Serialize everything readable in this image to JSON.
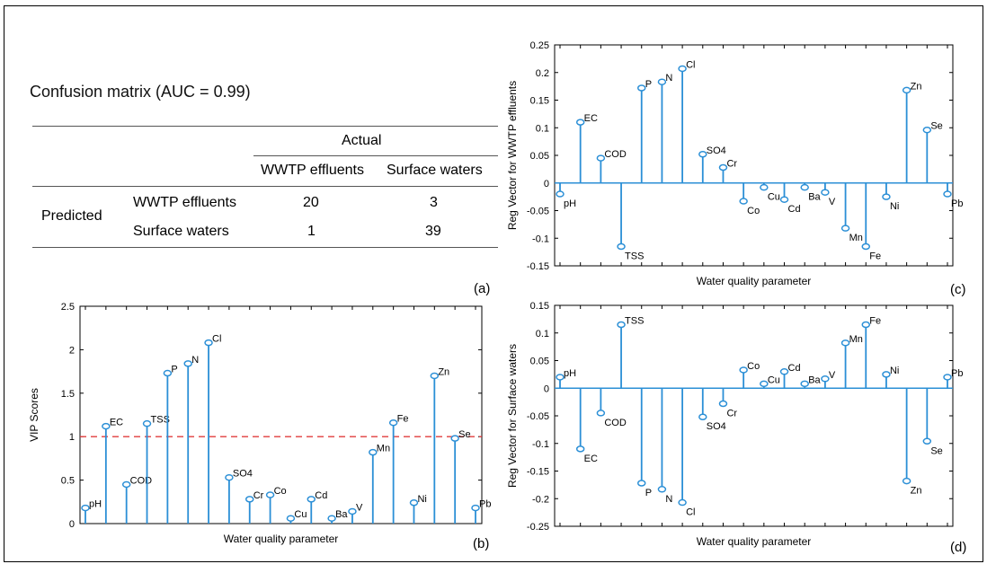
{
  "panel_a": {
    "title": "Confusion matrix (AUC = 0.99)",
    "actual_header": "Actual",
    "predicted_label": "Predicted",
    "columns": [
      "WWTP effluents",
      "Surface waters"
    ],
    "rows": [
      {
        "label": "WWTP effluents",
        "values": [
          "20",
          "3"
        ]
      },
      {
        "label": "Surface waters",
        "values": [
          "1",
          "39"
        ]
      }
    ],
    "panel_label": "(a)"
  },
  "colors": {
    "stem": "#2b8fd6",
    "threshold": "#e03c3c",
    "axis": "#000000"
  },
  "chart_data": [
    {
      "id": "b",
      "type": "stem",
      "panel_label": "(b)",
      "xlabel": "Water quality parameter",
      "ylabel": "VIP Scores",
      "ylim": [
        0,
        2.5
      ],
      "yticks": [
        0,
        0.5,
        1,
        1.5,
        2,
        2.5
      ],
      "ytick_labels": [
        "0",
        "0.5",
        "1",
        "1.5",
        "2",
        "2.5"
      ],
      "threshold": 1,
      "categories": [
        "pH",
        "EC",
        "COD",
        "TSS",
        "P",
        "N",
        "Cl",
        "SO4",
        "Cr",
        "Co",
        "Cu",
        "Cd",
        "Ba",
        "V",
        "Mn",
        "Fe",
        "Ni",
        "Zn",
        "Se",
        "Pb"
      ],
      "values": [
        0.18,
        1.12,
        0.45,
        1.15,
        1.73,
        1.84,
        2.08,
        0.53,
        0.28,
        0.33,
        0.06,
        0.28,
        0.06,
        0.14,
        0.82,
        1.16,
        0.24,
        1.7,
        0.98,
        0.18
      ]
    },
    {
      "id": "c",
      "type": "stem",
      "panel_label": "(c)",
      "xlabel": "Water quality parameter",
      "ylabel": "Reg Vector for WWTP effluents",
      "ylim": [
        -0.15,
        0.25
      ],
      "yticks": [
        -0.15,
        -0.1,
        -0.05,
        0,
        0.05,
        0.1,
        0.15,
        0.2,
        0.25
      ],
      "ytick_labels": [
        "-0.15",
        "-0.1",
        "-0.05",
        "0",
        "0.05",
        "0.1",
        "0.15",
        "0.2",
        "0.25"
      ],
      "categories": [
        "pH",
        "EC",
        "COD",
        "TSS",
        "P",
        "N",
        "Cl",
        "SO4",
        "Cr",
        "Co",
        "Cu",
        "Cd",
        "Ba",
        "V",
        "Mn",
        "Fe",
        "Ni",
        "Zn",
        "Se",
        "Pb"
      ],
      "values": [
        -0.02,
        0.11,
        0.045,
        -0.115,
        0.172,
        0.183,
        0.207,
        0.052,
        0.028,
        -0.033,
        -0.008,
        -0.03,
        -0.008,
        -0.017,
        -0.082,
        -0.115,
        -0.025,
        0.168,
        0.096,
        -0.02
      ]
    },
    {
      "id": "d",
      "type": "stem",
      "panel_label": "(d)",
      "xlabel": "Water quality parameter",
      "ylabel": "Reg Vector for Surface waters",
      "ylim": [
        -0.25,
        0.15
      ],
      "yticks": [
        -0.25,
        -0.2,
        -0.15,
        -0.1,
        -0.05,
        0,
        0.05,
        0.1,
        0.15
      ],
      "ytick_labels": [
        "-0.25",
        "-0.2",
        "-0.15",
        "-0.1",
        "-0.05",
        "0",
        "0.05",
        "0.1",
        "0.15"
      ],
      "categories": [
        "pH",
        "EC",
        "COD",
        "TSS",
        "P",
        "N",
        "Cl",
        "SO4",
        "Cr",
        "Co",
        "Cu",
        "Cd",
        "Ba",
        "V",
        "Mn",
        "Fe",
        "Ni",
        "Zn",
        "Se",
        "Pb"
      ],
      "values": [
        0.02,
        -0.11,
        -0.045,
        0.115,
        -0.172,
        -0.183,
        -0.207,
        -0.052,
        -0.028,
        0.033,
        0.008,
        0.03,
        0.008,
        0.017,
        0.082,
        0.115,
        0.025,
        -0.168,
        -0.096,
        0.02
      ]
    }
  ]
}
